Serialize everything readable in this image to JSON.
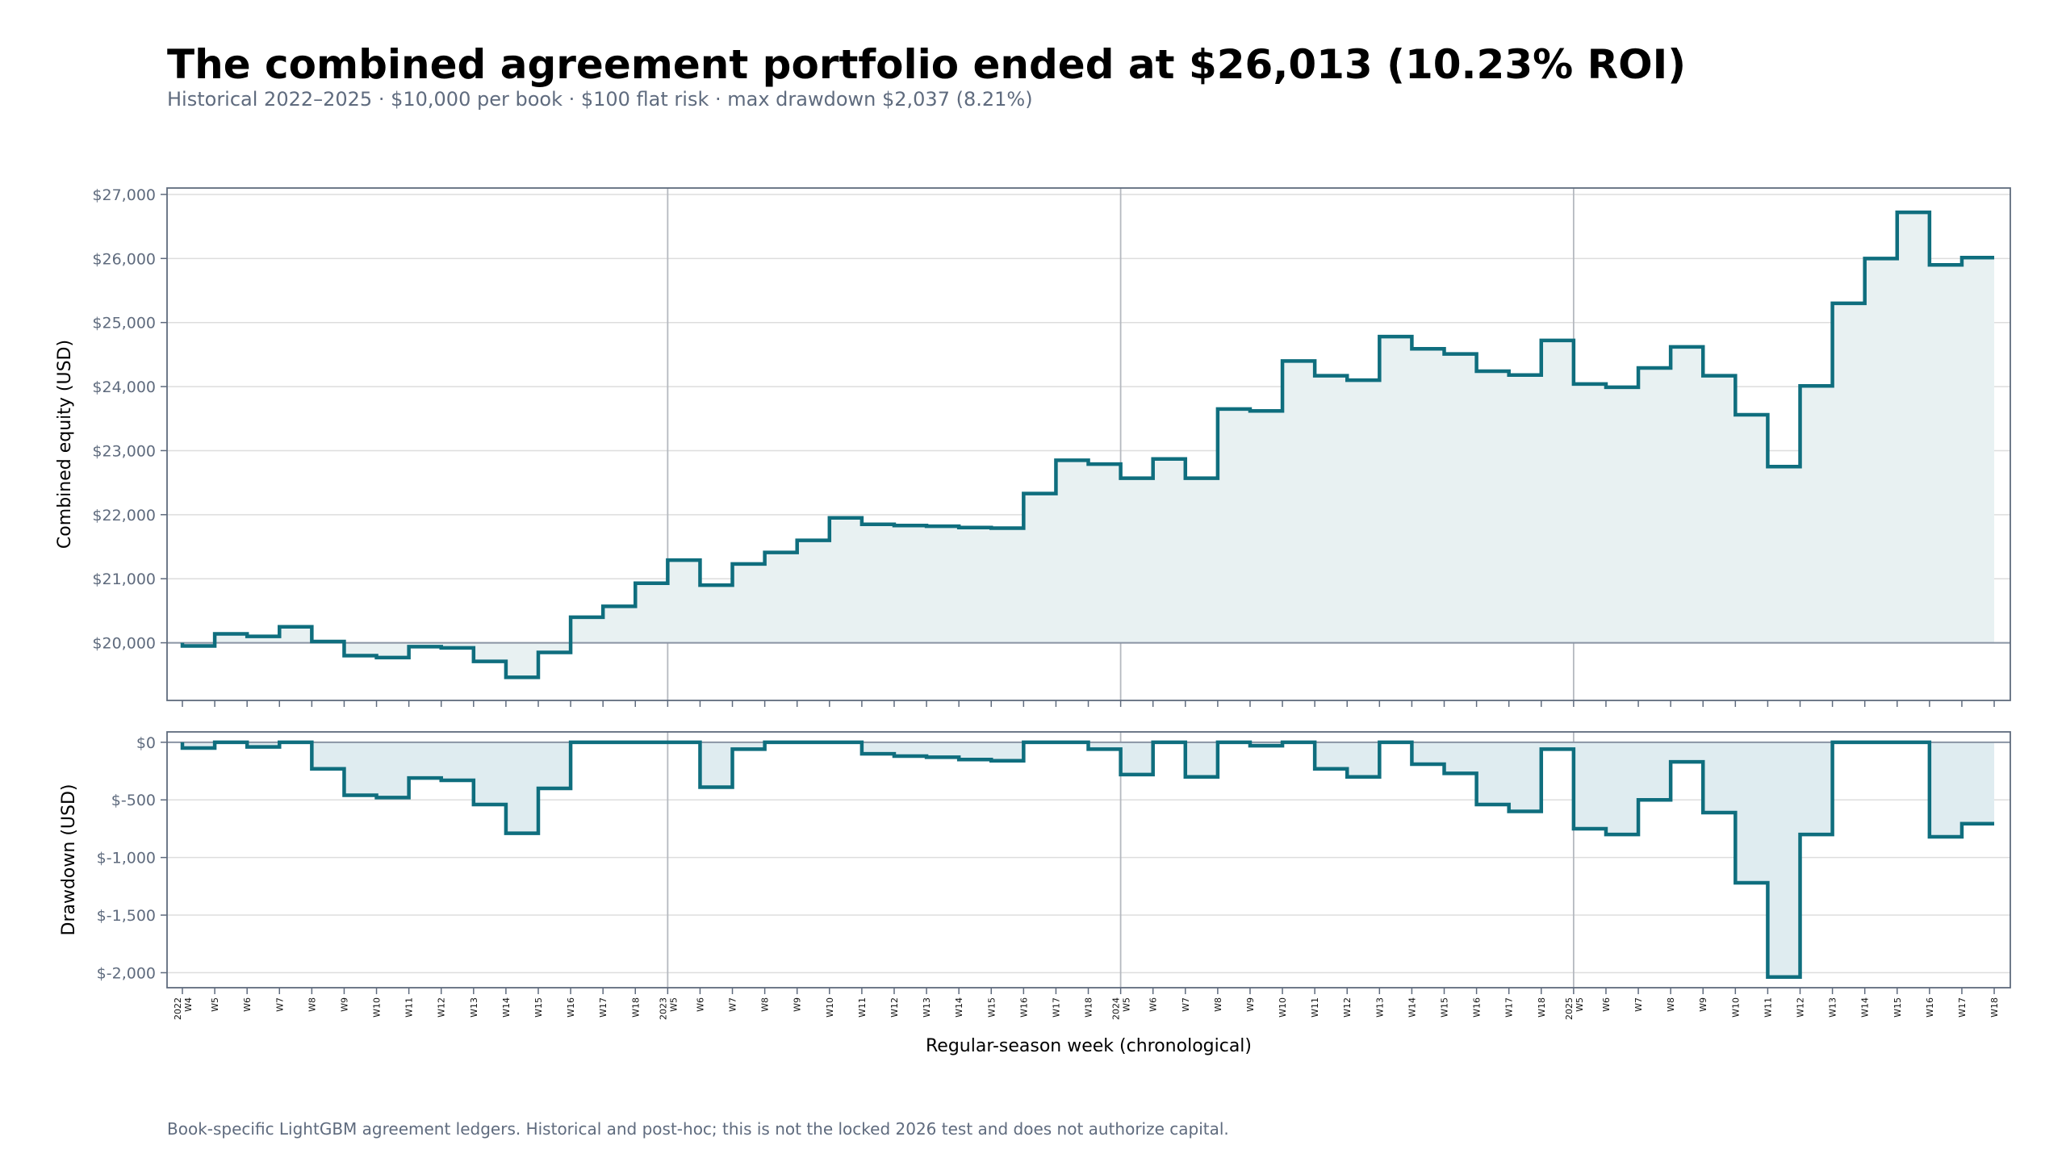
{
  "title": "The combined agreement portfolio ended at $26,013 (10.23% ROI)",
  "subtitle": "Historical 2022–2025 · $10,000 per book · $100 flat risk · max drawdown $2,037 (8.21%)",
  "footer": "Book-specific LightGBM agreement ledgers. Historical and post-hoc; this is not the locked 2026 test and does not authorize capital.",
  "colors": {
    "line": "#0f6e7e",
    "fill_equity": "#e8f1f2",
    "fill_drawdown": "#dfecf0",
    "frame": "#5f6b7e",
    "grid": "#dddddd",
    "baseline": "#8a94a4",
    "season_divider": "#b5b9c0"
  },
  "chart_data": [
    {
      "type": "area",
      "step": "pre",
      "ylabel": "Combined equity (USD)",
      "ylim": [
        19100,
        27100
      ],
      "yticks": [
        20000,
        21000,
        22000,
        23000,
        24000,
        25000,
        26000,
        27000
      ],
      "ytick_labels": [
        "$20,000",
        "$21,000",
        "$22,000",
        "$23,000",
        "$24,000",
        "$25,000",
        "$26,000",
        "$27,000"
      ],
      "reference_line": 20000,
      "grid": true,
      "series": [
        {
          "values": [
            20000,
            19950,
            20140,
            20100,
            20250,
            20020,
            19800,
            19770,
            19940,
            19920,
            19710,
            19460,
            19850,
            20400,
            20570,
            20930,
            21290,
            20900,
            21230,
            21410,
            21600,
            21950,
            21850,
            21830,
            21820,
            21800,
            21790,
            22330,
            22850,
            22790,
            22570,
            22870,
            22570,
            23650,
            23620,
            24400,
            24170,
            24100,
            24780,
            24590,
            24510,
            24240,
            24180,
            24720,
            24040,
            23990,
            24290,
            24620,
            24170,
            23560,
            22750,
            24010,
            25300,
            26000,
            26720,
            25900,
            26013
          ]
        }
      ]
    },
    {
      "type": "area",
      "step": "pre",
      "xlabel": "Regular-season week (chronological)",
      "ylabel": "Drawdown (USD)",
      "ylim": [
        -2130,
        90
      ],
      "yticks": [
        0,
        -500,
        -1000,
        -1500,
        -2000
      ],
      "ytick_labels": [
        "$0",
        "$-500",
        "$-1,000",
        "$-1,500",
        "$-2,000"
      ],
      "grid": true,
      "series": [
        {
          "values": [
            0,
            -50,
            0,
            -40,
            0,
            -230,
            -460,
            -480,
            -310,
            -330,
            -540,
            -790,
            -400,
            0,
            0,
            0,
            0,
            -390,
            -60,
            0,
            0,
            0,
            -100,
            -120,
            -130,
            -150,
            -160,
            0,
            0,
            -60,
            -280,
            0,
            -300,
            0,
            -30,
            0,
            -230,
            -300,
            0,
            -190,
            -270,
            -540,
            -600,
            -60,
            -750,
            -800,
            -500,
            -170,
            -610,
            -1220,
            -2037,
            -800,
            0,
            0,
            0,
            -820,
            -707
          ]
        }
      ]
    }
  ],
  "x_axis": {
    "labels": [
      "W4",
      "W5",
      "W6",
      "W7",
      "W8",
      "W9",
      "W10",
      "W11",
      "W12",
      "W13",
      "W14",
      "W15",
      "W16",
      "W17",
      "W18",
      "W5",
      "W6",
      "W7",
      "W8",
      "W9",
      "W10",
      "W11",
      "W12",
      "W13",
      "W14",
      "W15",
      "W16",
      "W17",
      "W18",
      "W5",
      "W6",
      "W7",
      "W8",
      "W9",
      "W10",
      "W11",
      "W12",
      "W13",
      "W14",
      "W15",
      "W16",
      "W17",
      "W18",
      "W5",
      "W6",
      "W7",
      "W8",
      "W9",
      "W10",
      "W11",
      "W12",
      "W13",
      "W14",
      "W15",
      "W16",
      "W17",
      "W18"
    ],
    "season_starts": [
      {
        "index": 0,
        "year": "2022"
      },
      {
        "index": 15,
        "year": "2023"
      },
      {
        "index": 29,
        "year": "2024"
      },
      {
        "index": 43,
        "year": "2025"
      }
    ]
  }
}
